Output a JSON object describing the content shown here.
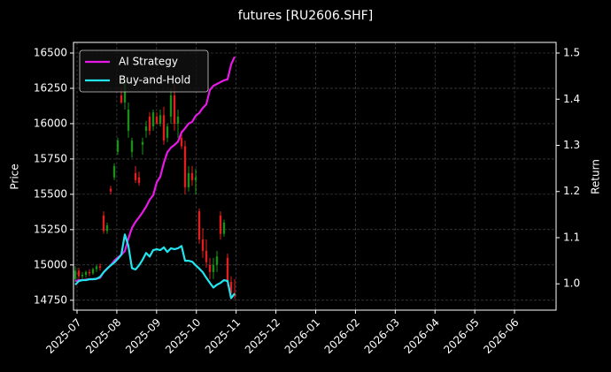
{
  "chart_data": {
    "type": "candlestick",
    "title": "futures [RU2606.SHF]",
    "ylabel": "Price",
    "y2label": "Return",
    "xlim": [
      "2025-07",
      "2026-07"
    ],
    "xticks": [
      "2025-07",
      "2025-08",
      "2025-09",
      "2025-10",
      "2025-11",
      "2025-12",
      "2026-01",
      "2026-02",
      "2026-03",
      "2026-04",
      "2026-05",
      "2026-06"
    ],
    "ylim": [
      14680,
      16575
    ],
    "yticks": [
      14750,
      15000,
      15250,
      15500,
      15750,
      16000,
      16250,
      16500
    ],
    "y2lim": [
      0.943,
      1.523
    ],
    "y2ticks": [
      {
        "value": 1,
        "label": "1.0"
      },
      1.1,
      1.2,
      1.3,
      1.4,
      1.5
    ],
    "grid": true,
    "legend": "upper left",
    "up_color": "#1a8f1a",
    "down_color": "#e02020",
    "candles": {
      "open": [
        14900,
        14960,
        14920,
        14930,
        14950,
        14940,
        14970,
        14990,
        15350,
        15240,
        15540,
        15620,
        15800,
        16200,
        16150,
        15950,
        15800,
        15650,
        15620,
        15850,
        15950,
        16050,
        15980,
        16050,
        16000,
        16060,
        15900,
        16050,
        16200,
        16000,
        15900,
        15840,
        15550,
        15650,
        15600,
        15380,
        15180,
        15100,
        15000,
        14950,
        15000,
        15350,
        15220,
        15050,
        14880,
        14800
      ],
      "high": [
        14990,
        14980,
        14950,
        14960,
        14970,
        14980,
        15000,
        15010,
        15380,
        15300,
        15560,
        15720,
        15900,
        16260,
        16350,
        16150,
        15900,
        15700,
        15660,
        15900,
        16020,
        16080,
        16100,
        16080,
        16100,
        16120,
        16000,
        16250,
        16280,
        16100,
        15950,
        15880,
        15700,
        15700,
        15680,
        15400,
        15260,
        15180,
        15050,
        15050,
        15100,
        15380,
        15320,
        15080,
        14920,
        14900
      ],
      "low": [
        14880,
        14900,
        14890,
        14910,
        14920,
        14930,
        14950,
        14960,
        15220,
        15220,
        15500,
        15600,
        15780,
        16140,
        16100,
        15900,
        15760,
        15580,
        15560,
        15780,
        15900,
        15920,
        15950,
        15990,
        15980,
        15850,
        15870,
        16000,
        15950,
        15900,
        15820,
        15500,
        15520,
        15560,
        15500,
        15150,
        15050,
        14980,
        14900,
        14900,
        14950,
        15180,
        15200,
        14850,
        14760,
        14760
      ],
      "close": [
        14960,
        14920,
        14930,
        14950,
        14940,
        14970,
        14990,
        14980,
        15240,
        15280,
        15520,
        15700,
        15880,
        16150,
        16300,
        16100,
        15880,
        15600,
        15580,
        15870,
        15980,
        15950,
        16080,
        16000,
        16060,
        15880,
        15980,
        16200,
        16000,
        16050,
        15840,
        15550,
        15650,
        15600,
        15620,
        15180,
        15100,
        15020,
        14950,
        15000,
        15060,
        15220,
        15300,
        14880,
        14800,
        14780
      ]
    },
    "series": [
      {
        "name": "AI Strategy",
        "color": "#e619e6",
        "axis": "y2",
        "values": [
          1.006,
          1.008,
          1.008,
          1.009,
          1.01,
          1.01,
          1.011,
          1.013,
          1.025,
          1.033,
          1.04,
          1.05,
          1.057,
          1.063,
          1.071,
          1.098,
          1.121,
          1.134,
          1.144,
          1.155,
          1.167,
          1.182,
          1.192,
          1.22,
          1.232,
          1.262,
          1.285,
          1.295,
          1.301,
          1.308,
          1.328,
          1.337,
          1.347,
          1.351,
          1.364,
          1.37,
          1.381,
          1.389,
          1.42,
          1.429,
          1.433,
          1.437,
          1.441,
          1.443,
          1.475,
          1.492
        ]
      },
      {
        "name": "Buy-and-Hold",
        "color": "#22e5f0",
        "axis": "y2",
        "values": [
          0.998,
          1.006,
          1.008,
          1.008,
          1.01,
          1.01,
          1.011,
          1.015,
          1.025,
          1.033,
          1.04,
          1.046,
          1.054,
          1.063,
          1.107,
          1.082,
          1.034,
          1.031,
          1.04,
          1.052,
          1.067,
          1.059,
          1.073,
          1.075,
          1.073,
          1.079,
          1.069,
          1.077,
          1.075,
          1.077,
          1.082,
          1.05,
          1.05,
          1.048,
          1.04,
          1.033,
          1.025,
          1.013,
          1.002,
          0.992,
          0.998,
          1.002,
          1.008,
          1.006,
          0.969,
          0.979
        ]
      }
    ]
  }
}
